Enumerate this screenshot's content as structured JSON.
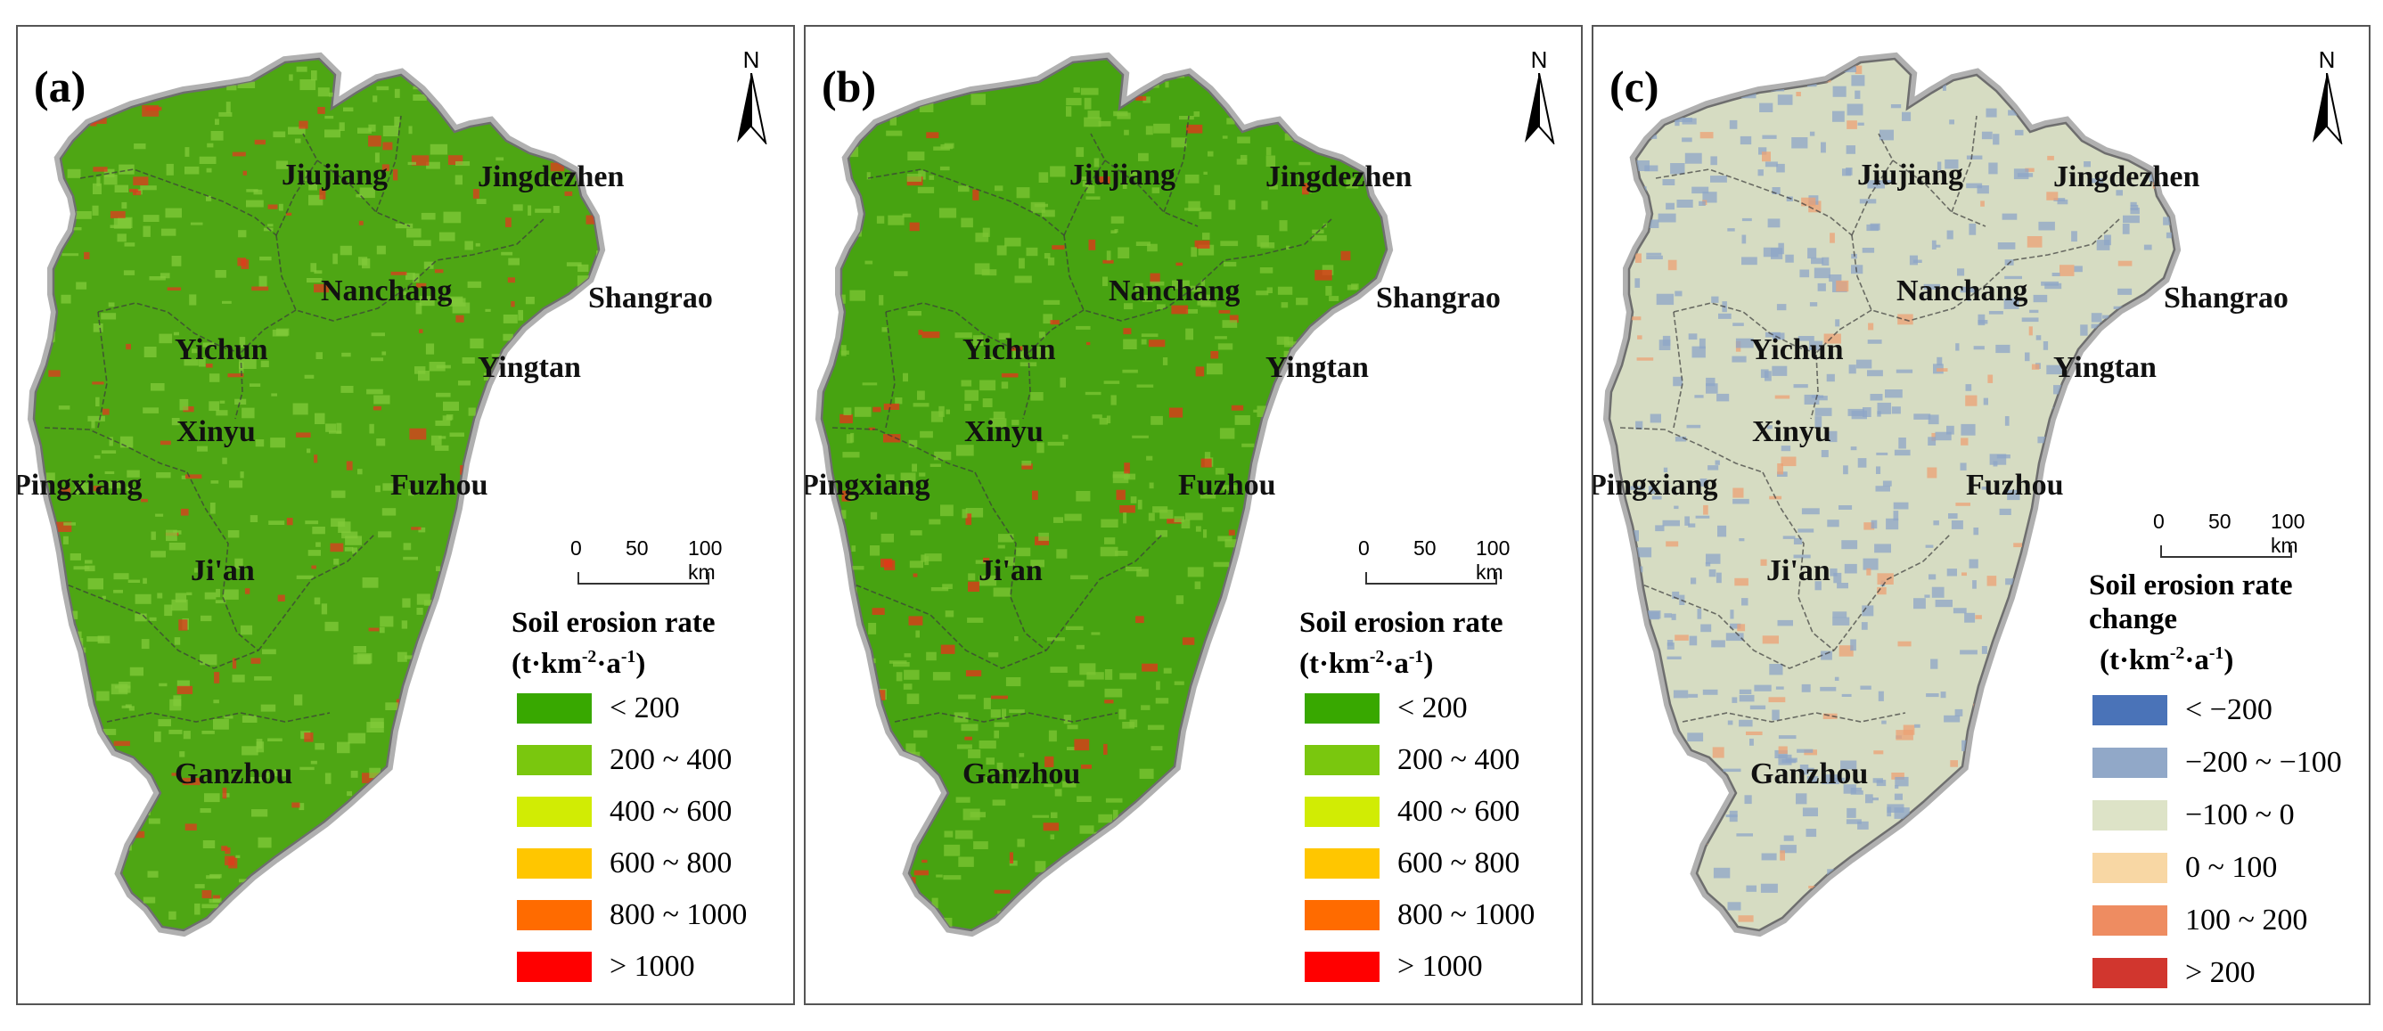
{
  "panels": [
    {
      "label": "(a)",
      "north": "N",
      "scale": {
        "t0": "0",
        "t1": "50",
        "t2": "100 km"
      },
      "cities": [
        "Jiujiang",
        "Jingdezhen",
        "Nanchang",
        "Shangrao",
        "Yichun",
        "Yingtan",
        "Xinyu",
        "Pingxiang",
        "Fuzhou",
        "Ji'an",
        "Ganzhou"
      ],
      "legend": {
        "title1": "Soil erosion rate",
        "title2": "",
        "unit": "(t·km",
        "unit_sup1": "-2",
        "unit_mid": "·a",
        "unit_sup2": "-1",
        "unit_end": ")",
        "items": [
          {
            "label": "< 200",
            "color": "#38a800"
          },
          {
            "label": "200 ~ 400",
            "color": "#7ac70e"
          },
          {
            "label": "400 ~ 600",
            "color": "#d1ec04"
          },
          {
            "label": "600 ~ 800",
            "color": "#ffc600"
          },
          {
            "label": "800 ~ 1000",
            "color": "#ff6b00"
          },
          {
            "label": "> 1000",
            "color": "#ff0000"
          }
        ]
      }
    },
    {
      "label": "(b)",
      "north": "N",
      "scale": {
        "t0": "0",
        "t1": "50",
        "t2": "100 km"
      },
      "cities": [
        "Jiujiang",
        "Jingdezhen",
        "Nanchang",
        "Shangrao",
        "Yichun",
        "Yingtan",
        "Xinyu",
        "Pingxiang",
        "Fuzhou",
        "Ji'an",
        "Ganzhou"
      ],
      "legend": {
        "title1": "Soil erosion rate",
        "title2": "",
        "unit": "(t·km",
        "unit_sup1": "-2",
        "unit_mid": "·a",
        "unit_sup2": "-1",
        "unit_end": ")",
        "items": [
          {
            "label": "< 200",
            "color": "#38a800"
          },
          {
            "label": "200 ~ 400",
            "color": "#7ac70e"
          },
          {
            "label": "400 ~ 600",
            "color": "#d1ec04"
          },
          {
            "label": "600 ~ 800",
            "color": "#ffc600"
          },
          {
            "label": "800 ~ 1000",
            "color": "#ff6b00"
          },
          {
            "label": "> 1000",
            "color": "#ff0000"
          }
        ]
      }
    },
    {
      "label": "(c)",
      "north": "N",
      "scale": {
        "t0": "0",
        "t1": "50",
        "t2": "100 km"
      },
      "cities": [
        "Jiujiang",
        "Jingdezhen",
        "Nanchang",
        "Shangrao",
        "Yichun",
        "Yingtan",
        "Xinyu",
        "Pingxiang",
        "Fuzhou",
        "Ji'an",
        "Ganzhou"
      ],
      "legend": {
        "title1": "Soil erosion rate",
        "title2": "change",
        "unit": "(t·km",
        "unit_sup1": "-2",
        "unit_mid": "·a",
        "unit_sup2": "-1",
        "unit_end": ")",
        "items": [
          {
            "label": "< −200",
            "color": "#4a73b8"
          },
          {
            "label": "−200 ~ −100",
            "color": "#91a8c8"
          },
          {
            "label": "−100 ~ 0",
            "color": "#dde3c7"
          },
          {
            "label": "0 ~ 100",
            "color": "#f8d7a4"
          },
          {
            "label": "100 ~ 200",
            "color": "#ee8c61"
          },
          {
            "label": "> 200",
            "color": "#d1362e"
          }
        ]
      }
    }
  ],
  "map_fill": {
    "a": {
      "base": "#4ea614",
      "light": "#82c93a",
      "hot": "#e03a1e"
    },
    "b": {
      "base": "#47a311",
      "light": "#7cc534",
      "hot": "#e5331a"
    },
    "c": {
      "base": "#d6dcc2",
      "light": "#8ea6c7",
      "hot": "#eca274"
    }
  }
}
